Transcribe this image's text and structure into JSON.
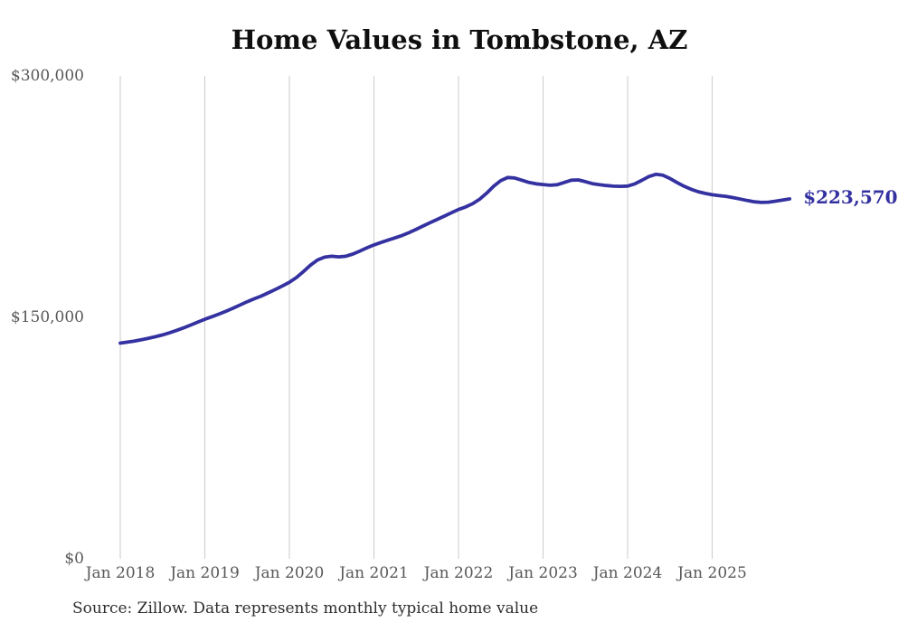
{
  "chart": {
    "title": "Home Values in Tombstone, AZ",
    "latest_value_label": "$223,570",
    "source": "Source: Zillow. Data represents monthly typical home value",
    "colors": {
      "line": "#3431a0",
      "grid": "#cbcbcb",
      "tick": "#58585a",
      "title": "#0f0f0f",
      "source": "#2e2e2e",
      "background": "#ffffff"
    }
  },
  "chart_data": {
    "type": "line",
    "title": "Home Values in Tombstone, AZ",
    "unit": "USD",
    "frequency": "monthly",
    "grid": "vertical",
    "legend": null,
    "ylim": [
      0,
      300000
    ],
    "yticks": [
      {
        "value": 0,
        "label": "$0"
      },
      {
        "value": 150000,
        "label": "$150,000"
      },
      {
        "value": 300000,
        "label": "$300,000"
      }
    ],
    "xticks": [
      {
        "month_index": 0,
        "label": "Jan 2018"
      },
      {
        "month_index": 12,
        "label": "Jan 2019"
      },
      {
        "month_index": 24,
        "label": "Jan 2020"
      },
      {
        "month_index": 36,
        "label": "Jan 2021"
      },
      {
        "month_index": 48,
        "label": "Jan 2022"
      },
      {
        "month_index": 60,
        "label": "Jan 2023"
      },
      {
        "month_index": 72,
        "label": "Jan 2024"
      },
      {
        "month_index": 84,
        "label": "Jan 2025"
      }
    ],
    "annotations": [
      {
        "text": "$223,570",
        "position": "line-end"
      }
    ],
    "x": [
      "2018-01",
      "2018-02",
      "2018-03",
      "2018-04",
      "2018-05",
      "2018-06",
      "2018-07",
      "2018-08",
      "2018-09",
      "2018-10",
      "2018-11",
      "2018-12",
      "2019-01",
      "2019-02",
      "2019-03",
      "2019-04",
      "2019-05",
      "2019-06",
      "2019-07",
      "2019-08",
      "2019-09",
      "2019-10",
      "2019-11",
      "2019-12",
      "2020-01",
      "2020-02",
      "2020-03",
      "2020-04",
      "2020-05",
      "2020-06",
      "2020-07",
      "2020-08",
      "2020-09",
      "2020-10",
      "2020-11",
      "2020-12",
      "2021-01",
      "2021-02",
      "2021-03",
      "2021-04",
      "2021-05",
      "2021-06",
      "2021-07",
      "2021-08",
      "2021-09",
      "2021-10",
      "2021-11",
      "2021-12",
      "2022-01",
      "2022-02",
      "2022-03",
      "2022-04",
      "2022-05",
      "2022-06",
      "2022-07",
      "2022-08",
      "2022-09",
      "2022-10",
      "2022-11",
      "2022-12",
      "2023-01",
      "2023-02",
      "2023-03",
      "2023-04",
      "2023-05",
      "2023-06",
      "2023-07",
      "2023-08",
      "2023-09",
      "2023-10",
      "2023-11",
      "2023-12",
      "2024-01",
      "2024-02",
      "2024-03",
      "2024-04",
      "2024-05",
      "2024-06",
      "2024-07",
      "2024-08",
      "2024-09",
      "2024-10",
      "2024-11",
      "2024-12",
      "2025-01",
      "2025-02",
      "2025-03",
      "2025-04",
      "2025-05",
      "2025-06",
      "2025-07",
      "2025-08",
      "2025-09",
      "2025-10",
      "2025-11",
      "2025-12"
    ],
    "values": [
      134000,
      134600,
      135300,
      136100,
      137000,
      138000,
      139100,
      140400,
      141900,
      143500,
      145200,
      147000,
      148800,
      150400,
      152000,
      153800,
      155700,
      157700,
      159700,
      161500,
      163200,
      165200,
      167300,
      169500,
      171800,
      174800,
      178500,
      182500,
      185700,
      187400,
      188000,
      187600,
      188000,
      189300,
      191200,
      193200,
      195000,
      196500,
      198000,
      199400,
      200900,
      202700,
      204700,
      206800,
      208900,
      210900,
      212900,
      215000,
      217000,
      218600,
      220600,
      223400,
      227200,
      231500,
      235000,
      236900,
      236600,
      235200,
      233800,
      233000,
      232500,
      232100,
      232400,
      233800,
      235200,
      235400,
      234300,
      233100,
      232400,
      231900,
      231500,
      231400,
      231600,
      232900,
      235100,
      237500,
      238900,
      238300,
      236300,
      233800,
      231500,
      229600,
      228100,
      227000,
      226200,
      225600,
      225100,
      224400,
      223500,
      222600,
      221800,
      221400,
      221600,
      222200,
      222900,
      223570
    ]
  }
}
